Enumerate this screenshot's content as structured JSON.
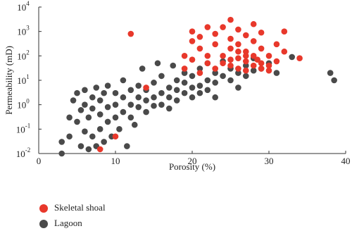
{
  "chart_data": {
    "type": "scatter",
    "xlabel": "Porosity (%)",
    "ylabel": "Permeability (mD)",
    "xlim": [
      0,
      40
    ],
    "xticks": [
      0,
      10,
      20,
      30,
      40
    ],
    "ylim": [
      0.01,
      10000
    ],
    "log_y": true,
    "yticks": [
      {
        "value": 0.01,
        "label": "10",
        "power": "-2"
      },
      {
        "value": 0.1,
        "label": "10",
        "power": "-1"
      },
      {
        "value": 1,
        "label": "10",
        "power": "0"
      },
      {
        "value": 10,
        "label": "10",
        "power": "1"
      },
      {
        "value": 100,
        "label": "10",
        "power": "2"
      },
      {
        "value": 1000,
        "label": "10",
        "power": "3"
      },
      {
        "value": 10000,
        "label": "10",
        "power": "4"
      }
    ],
    "series": [
      {
        "name": "Skeletal shoal",
        "color": "#e8382b",
        "x": [
          8,
          10,
          12,
          14,
          19,
          19,
          20,
          20,
          20,
          21,
          21,
          21,
          22,
          22,
          22,
          23,
          23,
          23,
          24,
          24,
          24,
          25,
          25,
          25,
          25,
          26,
          26,
          26,
          26,
          27,
          27,
          27,
          27,
          28,
          28,
          28,
          28,
          28.5,
          29,
          29,
          29,
          29,
          30,
          30,
          31,
          31,
          32,
          32,
          34,
          30,
          27,
          26,
          25
        ],
        "y": [
          0.015,
          0.05,
          800,
          5,
          100,
          30,
          400,
          1000,
          70,
          200,
          600,
          20,
          1500,
          100,
          50,
          300,
          30,
          800,
          1500,
          100,
          50,
          3000,
          200,
          40,
          500,
          1200,
          80,
          30,
          300,
          700,
          60,
          150,
          25,
          2000,
          100,
          40,
          400,
          70,
          200,
          50,
          30,
          900,
          100,
          40,
          60,
          300,
          1000,
          150,
          80,
          25,
          100,
          150,
          70
        ]
      },
      {
        "name": "Lagoon",
        "color": "#4a4a4a",
        "x": [
          3,
          3,
          4,
          4,
          4.5,
          5,
          5,
          5.5,
          5.5,
          6,
          6,
          6,
          6.5,
          6.5,
          7,
          7,
          7,
          7.5,
          7.5,
          8,
          8,
          8,
          8.5,
          8.5,
          9,
          9,
          9,
          9.5,
          10,
          10,
          10,
          10.5,
          11,
          11,
          11,
          11.5,
          12,
          12,
          12,
          12.5,
          13,
          13,
          13,
          13.5,
          14,
          14,
          14,
          15,
          15,
          15,
          15.5,
          16,
          16,
          16,
          17,
          17,
          17,
          17.5,
          18,
          18,
          18,
          19,
          19,
          19,
          20,
          20,
          20,
          21,
          21,
          21,
          22,
          22,
          22,
          23,
          23,
          23,
          24,
          24,
          25,
          25,
          26,
          26,
          27,
          27,
          28,
          28,
          29,
          30,
          31,
          38,
          38.5,
          33
        ],
        "y": [
          0.01,
          0.03,
          0.05,
          0.3,
          1.5,
          3,
          0.2,
          0.02,
          0.6,
          4,
          0.08,
          1,
          0.015,
          0.3,
          2,
          0.05,
          0.7,
          0.02,
          5,
          0.1,
          1.5,
          0.4,
          0.03,
          3,
          0.2,
          0.8,
          6,
          0.05,
          1,
          0.3,
          3,
          0.1,
          2,
          0.5,
          10,
          0.02,
          1,
          4,
          0.3,
          0.15,
          2,
          0.8,
          6,
          30,
          1.5,
          0.5,
          4,
          2,
          8,
          0.9,
          50,
          3,
          1,
          15,
          2,
          5,
          0.7,
          40,
          4,
          1.5,
          10,
          3,
          8,
          20,
          5,
          2,
          15,
          6,
          30,
          3,
          10,
          4,
          50,
          8,
          20,
          2,
          15,
          60,
          10,
          30,
          20,
          5,
          40,
          15,
          25,
          80,
          30,
          50,
          20,
          20,
          10,
          90
        ]
      }
    ]
  }
}
